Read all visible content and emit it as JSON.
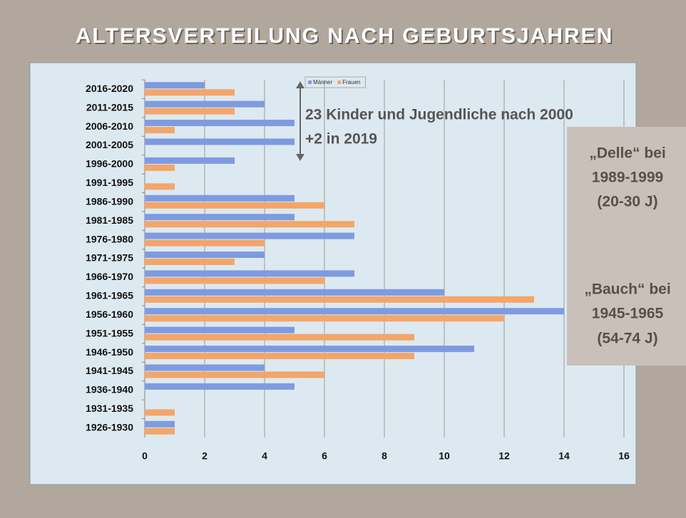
{
  "chart_data": {
    "type": "hbar",
    "title": "ALTERSVERTEILUNG NACH GEBURTSJAHREN",
    "categories": [
      "2016-2020",
      "2011-2015",
      "2006-2010",
      "2001-2005",
      "1996-2000",
      "1991-1995",
      "1986-1990",
      "1981-1985",
      "1976-1980",
      "1971-1975",
      "1966-1970",
      "1961-1965",
      "1956-1960",
      "1951-1955",
      "1946-1950",
      "1941-1945",
      "1936-1940",
      "1931-1935",
      "1926-1930"
    ],
    "series": [
      {
        "name": "Männer",
        "color": "#7f9be0",
        "values": [
          2,
          4,
          5,
          5,
          3,
          0,
          5,
          5,
          7,
          4,
          7,
          10,
          14,
          5,
          11,
          4,
          5,
          0,
          1
        ]
      },
      {
        "name": "Frauen",
        "color": "#f3a66a",
        "values": [
          3,
          3,
          1,
          0,
          1,
          1,
          6,
          7,
          4,
          3,
          6,
          13,
          12,
          9,
          9,
          6,
          0,
          1,
          1
        ]
      }
    ],
    "xlim": [
      0,
      16
    ],
    "xticks": [
      0,
      2,
      4,
      6,
      8,
      10,
      12,
      14,
      16
    ],
    "grid": true,
    "annotations": [
      "23 Kinder und Jugendliche nach 2000",
      "+2 in 2019"
    ],
    "box_texts": [
      "„Delle“ bei",
      "1989-1999",
      "(20-30 J)",
      "„Bauch“ bei",
      "1945-1965",
      "(54-74 J)"
    ]
  }
}
